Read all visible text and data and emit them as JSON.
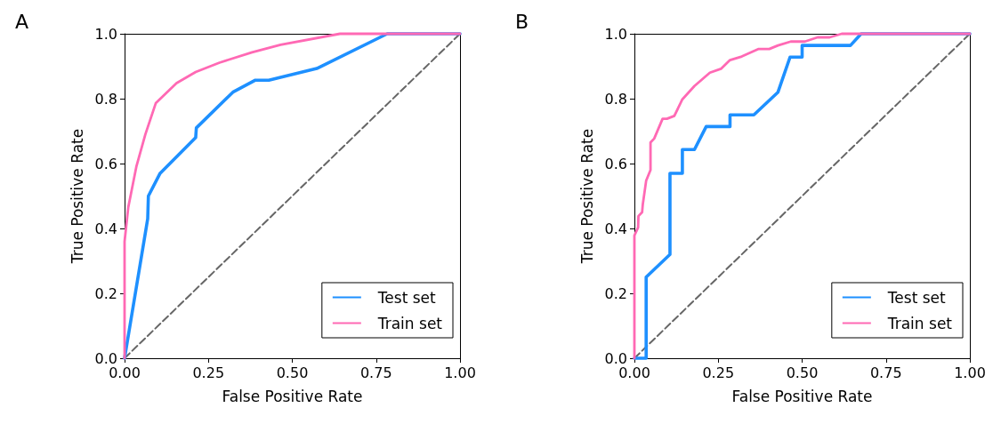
{
  "chart_data": [
    {
      "type": "line",
      "title": "A",
      "xlabel": "False Positive Rate",
      "ylabel": "True Positive Rate",
      "xlim": [
        0,
        1
      ],
      "ylim": [
        0,
        1
      ],
      "xticks": [
        {
          "value": 0,
          "label": "0.00"
        },
        {
          "value": 0.25,
          "label": "0.25"
        },
        {
          "value": 0.5,
          "label": "0.50"
        },
        {
          "value": 0.75,
          "label": "0.75"
        },
        {
          "value": 1,
          "label": "1.00"
        }
      ],
      "yticks": [
        {
          "value": 0,
          "label": "0.0"
        },
        {
          "value": 0.2,
          "label": "0.2"
        },
        {
          "value": 0.4,
          "label": "0.4"
        },
        {
          "value": 0.6,
          "label": "0.6"
        },
        {
          "value": 0.8,
          "label": "0.8"
        },
        {
          "value": 1,
          "label": "1.0"
        }
      ],
      "grid": false,
      "legend": "bottom right",
      "marker": "none",
      "series": [
        {
          "name": "Test set",
          "color": "#1e90ff",
          "x": [
            0,
            0.069,
            0.071,
            0.106,
            0.212,
            0.214,
            0.323,
            0.39,
            0.43,
            0.573,
            0.783,
            1
          ],
          "values": [
            0,
            0.43,
            0.5,
            0.57,
            0.68,
            0.71,
            0.82,
            0.857,
            0.857,
            0.893,
            1,
            1
          ]
        },
        {
          "name": "Train set",
          "color": "#ff69b4",
          "x": [
            0,
            0,
            0.011,
            0.035,
            0.062,
            0.093,
            0.155,
            0.212,
            0.283,
            0.38,
            0.465,
            0.642,
            1
          ],
          "values": [
            0,
            0.36,
            0.465,
            0.59,
            0.69,
            0.786,
            0.848,
            0.882,
            0.911,
            0.943,
            0.966,
            1,
            1
          ]
        },
        {
          "color": "#666666",
          "line_style": "dashed",
          "x": [
            0,
            1
          ],
          "values": [
            0,
            1
          ]
        }
      ]
    },
    {
      "type": "line",
      "title": "B",
      "xlabel": "False Positive Rate",
      "ylabel": "True Positive Rate",
      "xlim": [
        0,
        1
      ],
      "ylim": [
        0,
        1
      ],
      "xticks": [
        {
          "value": 0,
          "label": "0.00"
        },
        {
          "value": 0.25,
          "label": "0.25"
        },
        {
          "value": 0.5,
          "label": "0.50"
        },
        {
          "value": 0.75,
          "label": "0.75"
        },
        {
          "value": 1,
          "label": "1.00"
        }
      ],
      "yticks": [
        {
          "value": 0,
          "label": "0.0"
        },
        {
          "value": 0.2,
          "label": "0.2"
        },
        {
          "value": 0.4,
          "label": "0.4"
        },
        {
          "value": 0.6,
          "label": "0.6"
        },
        {
          "value": 0.8,
          "label": "0.8"
        },
        {
          "value": 1,
          "label": "1.0"
        }
      ],
      "grid": false,
      "legend": "bottom right",
      "marker": "none",
      "series": [
        {
          "name": "Test set",
          "color": "#1e90ff",
          "x": [
            0,
            0.035,
            0.035,
            0.106,
            0.106,
            0.143,
            0.143,
            0.179,
            0.214,
            0.285,
            0.285,
            0.356,
            0.428,
            0.464,
            0.5,
            0.5,
            0.644,
            0.676,
            1
          ],
          "values": [
            0,
            0,
            0.25,
            0.32,
            0.57,
            0.57,
            0.643,
            0.643,
            0.714,
            0.714,
            0.75,
            0.75,
            0.82,
            0.928,
            0.928,
            0.964,
            0.964,
            1,
            1
          ]
        },
        {
          "name": "Train set",
          "color": "#ff69b4",
          "x": [
            0,
            0,
            0.011,
            0.012,
            0.023,
            0.025,
            0.035,
            0.048,
            0.048,
            0.059,
            0.084,
            0.097,
            0.119,
            0.143,
            0.179,
            0.225,
            0.258,
            0.285,
            0.32,
            0.369,
            0.402,
            0.428,
            0.466,
            0.508,
            0.546,
            0.582,
            0.618,
            1
          ],
          "values": [
            0,
            0.378,
            0.403,
            0.438,
            0.45,
            0.474,
            0.547,
            0.58,
            0.665,
            0.677,
            0.738,
            0.738,
            0.747,
            0.798,
            0.839,
            0.88,
            0.892,
            0.919,
            0.93,
            0.953,
            0.953,
            0.964,
            0.976,
            0.976,
            0.989,
            0.989,
            1,
            1
          ]
        },
        {
          "color": "#666666",
          "line_style": "dashed",
          "x": [
            0,
            1
          ],
          "values": [
            0,
            1
          ]
        }
      ]
    }
  ]
}
